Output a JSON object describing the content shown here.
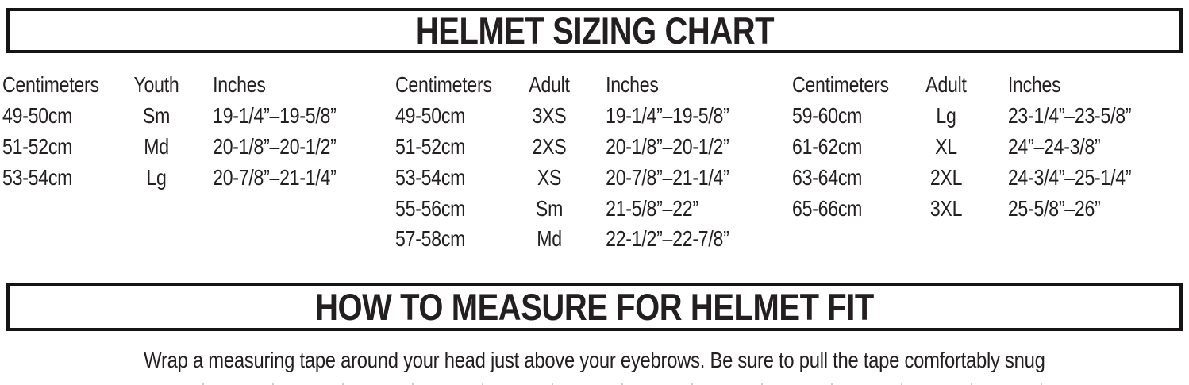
{
  "page": {
    "background": "#ffffff",
    "ink_color": "#231f20",
    "border_color": "#161314"
  },
  "title_bar": {
    "label": "HELMET SIZING CHART"
  },
  "measure_bar": {
    "label": "HOW TO MEASURE FOR HELMET FIT"
  },
  "instructions": "Wrap a measuring tape around your head just above your eyebrows. Be sure to pull the tape comfortably snug",
  "sizing_table": {
    "type": "table",
    "groups": [
      {
        "category": "Youth",
        "headers": [
          "Centimeters",
          "Youth",
          "Inches"
        ],
        "rows": [
          [
            "49-50cm",
            "Sm",
            "19-1/4”–19-5/8”"
          ],
          [
            "51-52cm",
            "Md",
            "20-1/8”–20-1/2”"
          ],
          [
            "53-54cm",
            "Lg",
            "20-7/8”–21-1/4”"
          ]
        ]
      },
      {
        "category": "Adult",
        "headers": [
          "Centimeters",
          "Adult",
          "Inches"
        ],
        "rows": [
          [
            "49-50cm",
            "3XS",
            "19-1/4”–19-5/8”"
          ],
          [
            "51-52cm",
            "2XS",
            "20-1/8”–20-1/2”"
          ],
          [
            "53-54cm",
            "XS",
            "20-7/8”–21-1/4”"
          ],
          [
            "55-56cm",
            "Sm",
            "21-5/8”–22”"
          ],
          [
            "57-58cm",
            "Md",
            "22-1/2”–22-7/8”"
          ]
        ]
      },
      {
        "category": "Adult",
        "headers": [
          "Centimeters",
          "Adult",
          "Inches"
        ],
        "rows": [
          [
            "59-60cm",
            "Lg",
            "23-1/4”–23-5/8”"
          ],
          [
            "61-62cm",
            "XL",
            "24”–24-3/8”"
          ],
          [
            "63-64cm",
            "2XL",
            "24-3/4”–25-1/4”"
          ],
          [
            "65-66cm",
            "3XL",
            "25-5/8”–26”"
          ]
        ]
      }
    ]
  }
}
